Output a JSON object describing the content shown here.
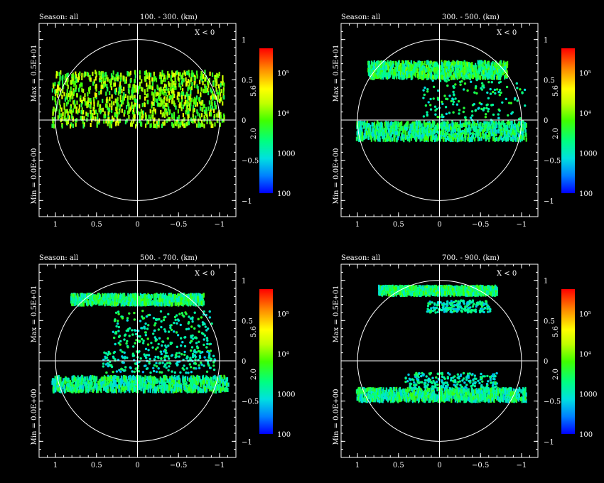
{
  "figure": {
    "background": "#000000",
    "foreground": "#ffffff"
  },
  "chart_data": [
    {
      "type": "scatter",
      "season_label": "Season: all",
      "range_label": "100. -   300. (km)",
      "region_label": "X < 0",
      "max_label": "Max = 0.5E+01",
      "min_label": "Min = 0.0E+00",
      "tick_mid_labels": [
        "5.6",
        "2.0"
      ],
      "xlim": [
        1.2,
        -1.2
      ],
      "ylim": [
        -1.2,
        1.2
      ],
      "x_ticks": [
        1,
        0.5,
        0,
        -0.5,
        -1
      ],
      "x_tick_labels": [
        "1",
        "0.5",
        "0",
        "−0.5",
        "−1"
      ],
      "y_ticks": [
        1,
        0.5,
        0,
        -0.5,
        -1
      ],
      "y_tick_labels": [
        "1",
        "0.5",
        "0",
        "−0.5",
        "−1"
      ],
      "circle_radius": 1,
      "colorbar": {
        "scale": "log",
        "ticks": [
          "100",
          "1000",
          "10⁴",
          "10⁵"
        ]
      },
      "bands": [
        {
          "y": [
            -0.08,
            0.6
          ],
          "x": [
            1.05,
            -1.05
          ],
          "density": "dense",
          "level": 0.55
        }
      ]
    },
    {
      "type": "scatter",
      "season_label": "Season: all",
      "range_label": "300. -   500. (km)",
      "region_label": "X < 0",
      "max_label": "Max = 0.5E+01",
      "min_label": "Min = 0.0E+00",
      "tick_mid_labels": [
        "5.6",
        "2.0"
      ],
      "xlim": [
        1.2,
        -1.2
      ],
      "ylim": [
        -1.2,
        1.2
      ],
      "x_ticks": [
        1,
        0.5,
        0,
        -0.5,
        -1
      ],
      "x_tick_labels": [
        "1",
        "0.5",
        "0",
        "−0.5",
        "−1"
      ],
      "y_ticks": [
        1,
        0.5,
        0,
        -0.5,
        -1
      ],
      "y_tick_labels": [
        "1",
        "0.5",
        "0",
        "−0.5",
        "−1"
      ],
      "circle_radius": 1,
      "colorbar": {
        "scale": "log",
        "ticks": [
          "100",
          "1000",
          "10⁴",
          "10⁵"
        ]
      },
      "bands": [
        {
          "y": [
            0.52,
            0.72
          ],
          "x": [
            0.88,
            -0.82
          ],
          "density": "dense",
          "level": 0.4
        },
        {
          "y": [
            -0.25,
            -0.03
          ],
          "x": [
            1.02,
            -1.05
          ],
          "density": "dense",
          "level": 0.35
        },
        {
          "y": [
            -0.2,
            0.5
          ],
          "x": [
            0.2,
            -1.05
          ],
          "density": "sparse",
          "level": 0.35
        }
      ]
    },
    {
      "type": "scatter",
      "season_label": "Season: all",
      "range_label": "500. -   700. (km)",
      "region_label": "X < 0",
      "max_label": "Max = 0.5E+01",
      "min_label": "Min = 0.0E+00",
      "tick_mid_labels": [
        "5.6",
        "2.0"
      ],
      "xlim": [
        1.2,
        -1.2
      ],
      "ylim": [
        -1.2,
        1.2
      ],
      "x_ticks": [
        1,
        0.5,
        0,
        -0.5,
        -1
      ],
      "x_tick_labels": [
        "1",
        "0.5",
        "0",
        "−0.5",
        "−1"
      ],
      "y_ticks": [
        1,
        0.5,
        0,
        -0.5,
        -1
      ],
      "y_tick_labels": [
        "1",
        "0.5",
        "0",
        "−0.5",
        "−1"
      ],
      "circle_radius": 1,
      "colorbar": {
        "scale": "log",
        "ticks": [
          "100",
          "1000",
          "10⁴",
          "10⁵"
        ]
      },
      "bands": [
        {
          "y": [
            0.7,
            0.82
          ],
          "x": [
            0.82,
            -0.8
          ],
          "density": "dense",
          "level": 0.38
        },
        {
          "y": [
            -0.38,
            -0.2
          ],
          "x": [
            1.05,
            -1.1
          ],
          "density": "dense",
          "level": 0.35
        },
        {
          "y": [
            0.1,
            0.62
          ],
          "x": [
            0.3,
            -0.92
          ],
          "density": "sparse",
          "level": 0.35
        },
        {
          "y": [
            -0.15,
            0.12
          ],
          "x": [
            0.42,
            -0.95
          ],
          "density": "sparse",
          "level": 0.3
        }
      ]
    },
    {
      "type": "scatter",
      "season_label": "Season: all",
      "range_label": "700. -   900. (km)",
      "region_label": "X < 0",
      "max_label": "Max = 0.5E+01",
      "min_label": "Min = 0.0E+00",
      "tick_mid_labels": [
        "5.6",
        "2.0"
      ],
      "xlim": [
        1.2,
        -1.2
      ],
      "ylim": [
        -1.2,
        1.2
      ],
      "x_ticks": [
        1,
        0.5,
        0,
        -0.5,
        -1
      ],
      "x_tick_labels": [
        "1",
        "0.5",
        "0",
        "−0.5",
        "−1"
      ],
      "y_ticks": [
        1,
        0.5,
        0,
        -0.5,
        -1
      ],
      "y_tick_labels": [
        "1",
        "0.5",
        "0",
        "−0.5",
        "−1"
      ],
      "circle_radius": 1,
      "colorbar": {
        "scale": "log",
        "ticks": [
          "100",
          "1000",
          "10⁴",
          "10⁵"
        ]
      },
      "bands": [
        {
          "y": [
            0.82,
            0.92
          ],
          "x": [
            0.75,
            -0.7
          ],
          "density": "dense",
          "level": 0.38
        },
        {
          "y": [
            0.6,
            0.75
          ],
          "x": [
            0.15,
            -0.62
          ],
          "density": "sparse",
          "level": 0.3
        },
        {
          "y": [
            -0.5,
            -0.35
          ],
          "x": [
            1.02,
            -1.05
          ],
          "density": "dense",
          "level": 0.35
        },
        {
          "y": [
            -0.35,
            -0.15
          ],
          "x": [
            0.42,
            -0.7
          ],
          "density": "sparse",
          "level": 0.3
        }
      ]
    }
  ]
}
